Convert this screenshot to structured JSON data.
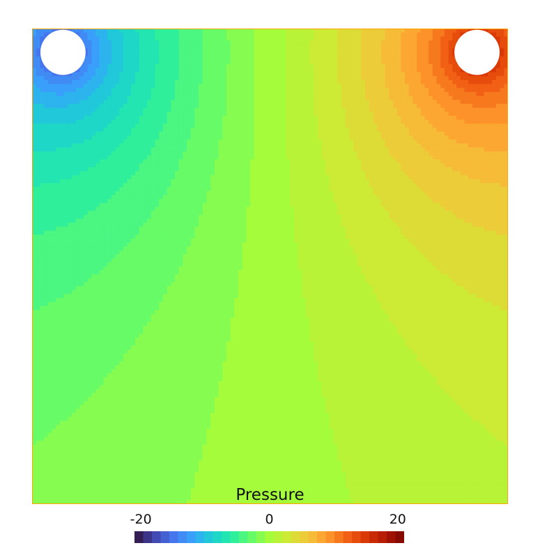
{
  "chart_data": {
    "type": "heatmap",
    "title": "",
    "xlabel": "",
    "ylabel": "",
    "colorbar": {
      "label": "Pressure",
      "range": [
        -21,
        21
      ],
      "ticks": [
        -20,
        0,
        20
      ],
      "tick_labels": [
        "-20",
        "0",
        "20"
      ],
      "levels": 31
    },
    "colormap": [
      "#30123b",
      "#4145ab",
      "#4675ed",
      "#39a2fc",
      "#1bcfd4",
      "#24eca6",
      "#61fc6c",
      "#a4fc3b",
      "#d1e834",
      "#f3c63a",
      "#fe9b2d",
      "#f36315",
      "#d93806",
      "#b11901",
      "#7a0402"
    ],
    "field": {
      "description_of_sources": "pressure field with a negative sink near the top-left hole and a positive source near the top-right hole",
      "domain": {
        "x": [
          -1,
          1
        ],
        "y": [
          -1,
          1
        ]
      },
      "sources": [
        {
          "x": -0.87,
          "y": 0.9,
          "strength": -5
        },
        {
          "x": 0.87,
          "y": 0.9,
          "strength": 5
        }
      ],
      "holes": [
        {
          "x": -0.87,
          "y": 0.9,
          "radius": 0.095
        },
        {
          "x": 0.87,
          "y": 0.9,
          "radius": 0.095
        }
      ]
    },
    "frame_color": "#ffa500"
  }
}
